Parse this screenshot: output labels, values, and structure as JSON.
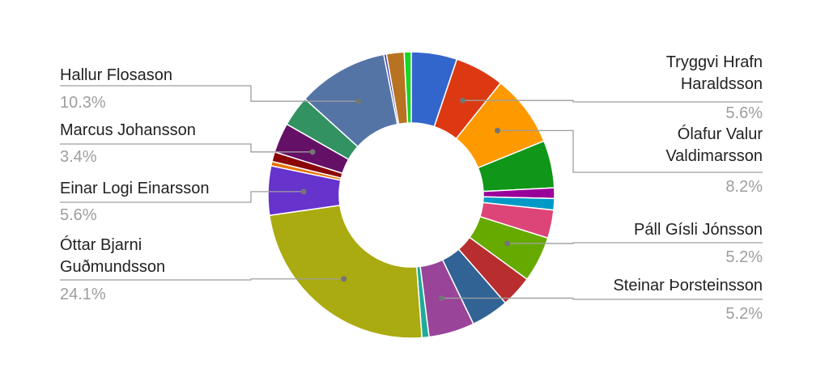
{
  "chart_data": {
    "type": "pie",
    "donut": true,
    "slices": [
      {
        "value": 5.2,
        "color": "#3366cc"
      },
      {
        "value": 5.6,
        "color": "#dc3912",
        "label": {
          "name": [
            "Tryggvi Hrafn",
            "Haraldsson"
          ],
          "pct": "5.6%"
        }
      },
      {
        "value": 8.2,
        "color": "#ff9900",
        "label": {
          "name": [
            "Ólafur Valur",
            "Valdimarsson"
          ],
          "pct": "8.2%"
        }
      },
      {
        "value": 5.4,
        "color": "#109618"
      },
      {
        "value": 1.2,
        "color": "#990099"
      },
      {
        "value": 1.3,
        "color": "#0099c6"
      },
      {
        "value": 3.2,
        "color": "#dd4477"
      },
      {
        "value": 5.2,
        "color": "#66aa00",
        "label": {
          "name": [
            "Páll Gísli Jónsson"
          ],
          "pct": "5.2%"
        }
      },
      {
        "value": 3.6,
        "color": "#b82e2e"
      },
      {
        "value": 4.3,
        "color": "#316395"
      },
      {
        "value": 5.2,
        "color": "#994499",
        "label": {
          "name": [
            "Steinar Þorsteinsson"
          ],
          "pct": "5.2%"
        }
      },
      {
        "value": 0.8,
        "color": "#22aa99"
      },
      {
        "value": 24.1,
        "color": "#aaaa11",
        "label": {
          "name": [
            "Óttar Bjarni",
            "Guðmundsson"
          ],
          "pct": "24.1%"
        }
      },
      {
        "value": 5.6,
        "color": "#6633cc",
        "label": {
          "name": [
            "Einar Logi Einarsson"
          ],
          "pct": "5.6%"
        }
      },
      {
        "value": 0.5,
        "color": "#e67300"
      },
      {
        "value": 1.1,
        "color": "#8b0707"
      },
      {
        "value": 3.4,
        "color": "#651067",
        "label": {
          "name": [
            "Marcus Johansson"
          ],
          "pct": "3.4%"
        }
      },
      {
        "value": 3.5,
        "color": "#329262"
      },
      {
        "value": 10.3,
        "color": "#5574a6",
        "label": {
          "name": [
            "Hallur Flosason"
          ],
          "pct": "10.3%"
        }
      },
      {
        "value": 0.3,
        "color": "#3b3eac"
      },
      {
        "value": 2.0,
        "color": "#b77322"
      },
      {
        "value": 0.8,
        "color": "#16d620"
      }
    ]
  }
}
